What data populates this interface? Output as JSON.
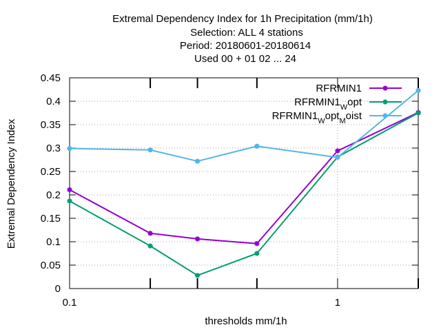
{
  "chart_data": {
    "type": "line",
    "title_lines": [
      "Extremal Dependency Index  for 1h Precipitation (mm/1h)",
      "Selection: ALL      4 stations",
      "Period: 20180601-20180614",
      "Used  00 + 01 02 ... 24"
    ],
    "xlabel": "thresholds mm/1h",
    "ylabel": "Extremal Dependency Index",
    "xscale": "log",
    "xlim": [
      0.1,
      2
    ],
    "ylim": [
      0,
      0.45
    ],
    "x_ticks": [
      {
        "value": 0.1,
        "label": "0.1"
      },
      {
        "value": 1,
        "label": "1"
      }
    ],
    "x_minor_ticks": [
      0.2,
      0.3,
      0.5,
      2
    ],
    "y_ticks": [
      {
        "value": 0,
        "label": "0"
      },
      {
        "value": 0.05,
        "label": "0.05"
      },
      {
        "value": 0.1,
        "label": "0.1"
      },
      {
        "value": 0.15,
        "label": "0.15"
      },
      {
        "value": 0.2,
        "label": "0.2"
      },
      {
        "value": 0.25,
        "label": "0.25"
      },
      {
        "value": 0.3,
        "label": "0.3"
      },
      {
        "value": 0.35,
        "label": "0.35"
      },
      {
        "value": 0.4,
        "label": "0.4"
      },
      {
        "value": 0.45,
        "label": "0.45"
      }
    ],
    "grid": true,
    "legend_position": "top-right",
    "x": [
      0.1,
      0.2,
      0.3,
      0.5,
      1,
      2
    ],
    "series": [
      {
        "key": "rfrmin1",
        "legend": {
          "base": "RFRMIN1",
          "parts": []
        },
        "color": "#9400d3",
        "marker": "star",
        "values": [
          0.211,
          0.118,
          0.106,
          0.096,
          0.294,
          0.376
        ]
      },
      {
        "key": "rfrmin1-wopt",
        "legend": {
          "base": "RFRMIN1",
          "parts": [
            {
              "sub": "W"
            },
            {
              "text": "opt"
            }
          ]
        },
        "color": "#009e73",
        "marker": "star",
        "values": [
          0.187,
          0.091,
          0.028,
          0.075,
          0.281,
          0.375
        ]
      },
      {
        "key": "rfrmin1-woptmoist",
        "legend": {
          "base": "RFRMIN1",
          "parts": [
            {
              "sub": "W"
            },
            {
              "text": "opt"
            },
            {
              "sub": "M"
            },
            {
              "text": "oist"
            }
          ]
        },
        "color": "#56b4e9",
        "marker": "circle",
        "values": [
          0.299,
          0.296,
          0.272,
          0.304,
          0.28,
          0.423
        ]
      }
    ]
  }
}
